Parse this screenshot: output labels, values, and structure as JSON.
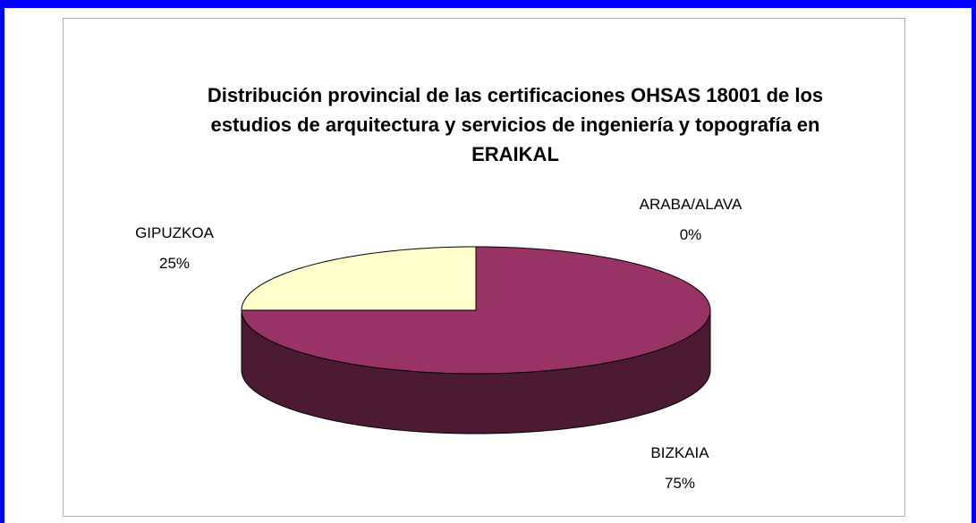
{
  "chart_data": {
    "type": "pie",
    "title": "Distribución provincial de las certificaciones OHSAS 18001 de los estudios de arquitectura y servicios de ingeniería y topografía en ERAIKAL",
    "categories": [
      "ARABA/ALAVA",
      "BIZKAIA",
      "GIPUZKOA"
    ],
    "values": [
      0,
      75,
      25
    ],
    "value_labels": [
      "0%",
      "75%",
      "25%"
    ],
    "colors": [
      "#9999ff",
      "#993366",
      "#ffffcc"
    ]
  }
}
